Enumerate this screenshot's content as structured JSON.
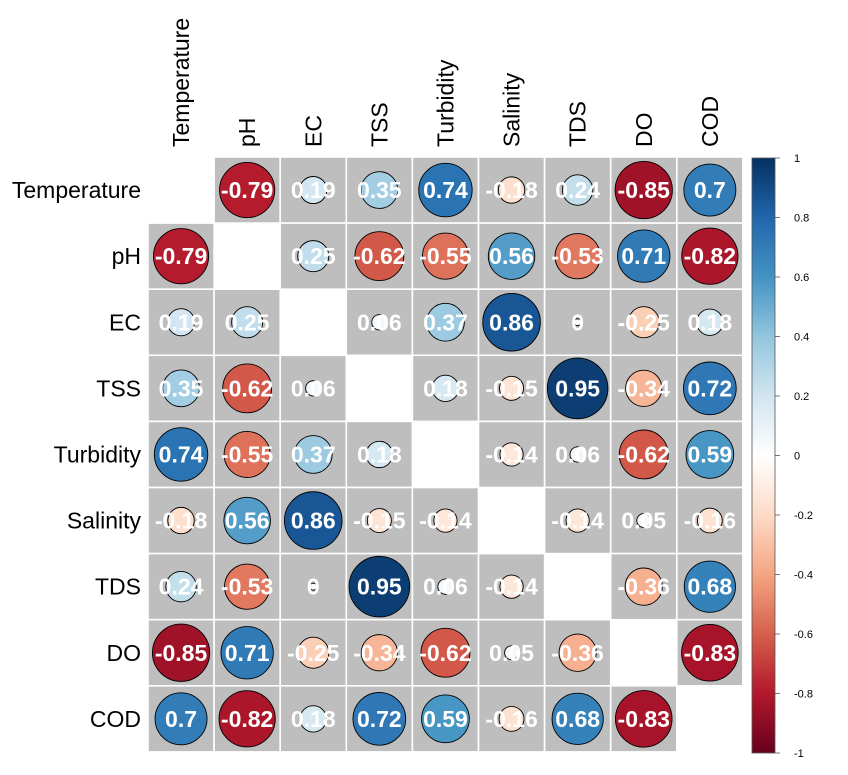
{
  "chart_data": {
    "type": "heatmap",
    "style": "circle correlation plot (upper and lower triangle, diagonal blank)",
    "variables": [
      "Temperature",
      "pH",
      "EC",
      "TSS",
      "Turbidity",
      "Salinity",
      "TDS",
      "DO",
      "COD"
    ],
    "value_labels": [
      [
        "",
        "-0.79",
        "0.19",
        "0.35",
        "0.74",
        "-0.18",
        "0.24",
        "-0.85",
        "0.7"
      ],
      [
        "-0.79",
        "",
        "0.25",
        "-0.62",
        "-0.55",
        "0.56",
        "-0.53",
        "0.71",
        "-0.82"
      ],
      [
        "0.19",
        "0.25",
        "",
        "0.06",
        "0.37",
        "0.86",
        "0",
        "-0.25",
        "0.18"
      ],
      [
        "0.35",
        "-0.62",
        "0.06",
        "",
        "0.18",
        "-0.15",
        "0.95",
        "-0.34",
        "0.72"
      ],
      [
        "0.74",
        "-0.55",
        "0.37",
        "0.18",
        "",
        "-0.14",
        "0.06",
        "-0.62",
        "0.59"
      ],
      [
        "-0.18",
        "0.56",
        "0.86",
        "-0.15",
        "-0.14",
        "",
        "-0.14",
        "0.05",
        "-0.16"
      ],
      [
        "0.24",
        "-0.53",
        "0",
        "0.95",
        "0.06",
        "-0.14",
        "",
        "-0.36",
        "0.68"
      ],
      [
        "-0.85",
        "0.71",
        "-0.25",
        "-0.34",
        "-0.62",
        "0.05",
        "-0.36",
        "",
        "-0.83"
      ],
      [
        "0.7",
        "-0.82",
        "0.18",
        "0.72",
        "0.59",
        "-0.16",
        "0.68",
        "-0.83",
        ""
      ]
    ],
    "colorbar": {
      "ticks": [
        "1",
        "0.8",
        "0.6",
        "0.4",
        "0.2",
        "0",
        "-0.2",
        "-0.4",
        "-0.6",
        "-0.8",
        "-1"
      ],
      "range": [
        -1,
        1
      ]
    },
    "colors": {
      "cell_background": "#bebebe",
      "diagonal": "#ffffff",
      "gridline": "#ffffff",
      "circle_outline": "#000000",
      "label_text": "#ffffff",
      "palette": [
        "#67001F",
        "#B2182B",
        "#D6604D",
        "#F4A582",
        "#FDDBC7",
        "#FFFFFF",
        "#D1E5F0",
        "#92C5DE",
        "#4393C3",
        "#2166AC",
        "#053061"
      ]
    },
    "legend_position": "right",
    "grid": true
  }
}
